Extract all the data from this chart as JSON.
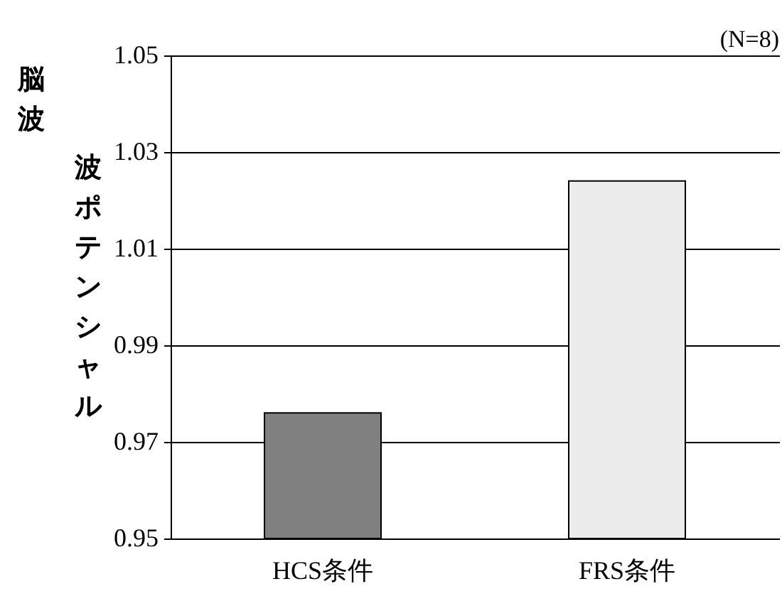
{
  "chart_data": {
    "type": "bar",
    "categories": [
      "HCS条件",
      "FRS条件"
    ],
    "values": [
      0.976,
      1.024
    ],
    "colors": [
      "#808080",
      "#ececec"
    ],
    "ylim": [
      0.95,
      1.05
    ],
    "yticks": [
      0.95,
      0.97,
      0.99,
      1.01,
      1.03,
      1.05
    ],
    "grid": "y",
    "ylabel": "脳波波ポテンシャル",
    "annotations": [
      "(N=8)"
    ]
  }
}
